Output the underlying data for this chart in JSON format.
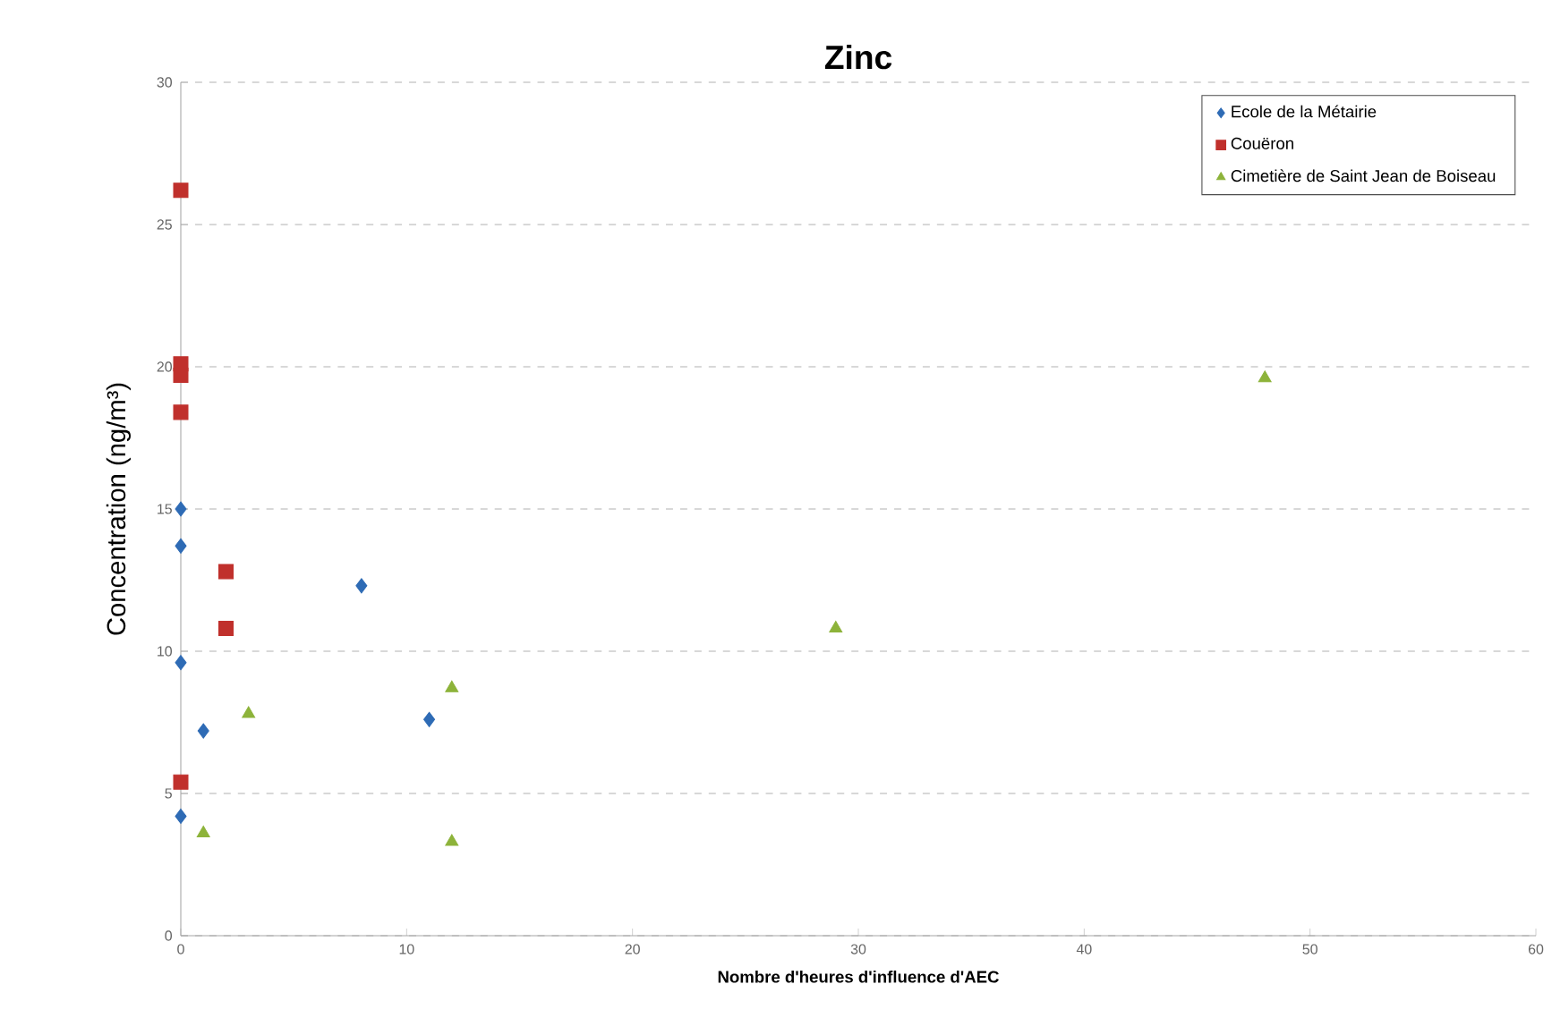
{
  "chart_data": {
    "type": "scatter",
    "title": "Zinc",
    "xlabel": "Nombre d'heures d'influence d'AEC",
    "ylabel": "Concentration (ng/m³)",
    "xlim": [
      0,
      60
    ],
    "xticks": [
      0,
      10,
      20,
      30,
      40,
      50,
      60
    ],
    "ylim": [
      0,
      30
    ],
    "yticks": [
      0,
      5,
      10,
      15,
      20,
      25,
      30
    ],
    "grid": "y",
    "legend": "top right",
    "series": [
      {
        "name": "Ecole de la Métairie",
        "color": "#2e6bb5",
        "marker": "diamond",
        "x": [
          0,
          0,
          0,
          0,
          1,
          8,
          11
        ],
        "values": [
          15.0,
          13.7,
          9.6,
          4.2,
          7.2,
          12.3,
          7.6
        ]
      },
      {
        "name": "Couëron",
        "color": "#c0302c",
        "marker": "square",
        "x": [
          0,
          0,
          0,
          0,
          0,
          2,
          2
        ],
        "values": [
          26.2,
          20.1,
          19.7,
          18.4,
          5.4,
          12.8,
          10.8
        ]
      },
      {
        "name": "Cimetière de Saint Jean de Boiseau",
        "color": "#8db33a",
        "marker": "triangle",
        "x": [
          1,
          3,
          12,
          12,
          29,
          48
        ],
        "values": [
          3.6,
          7.8,
          8.7,
          3.3,
          10.8,
          19.6
        ]
      }
    ]
  }
}
